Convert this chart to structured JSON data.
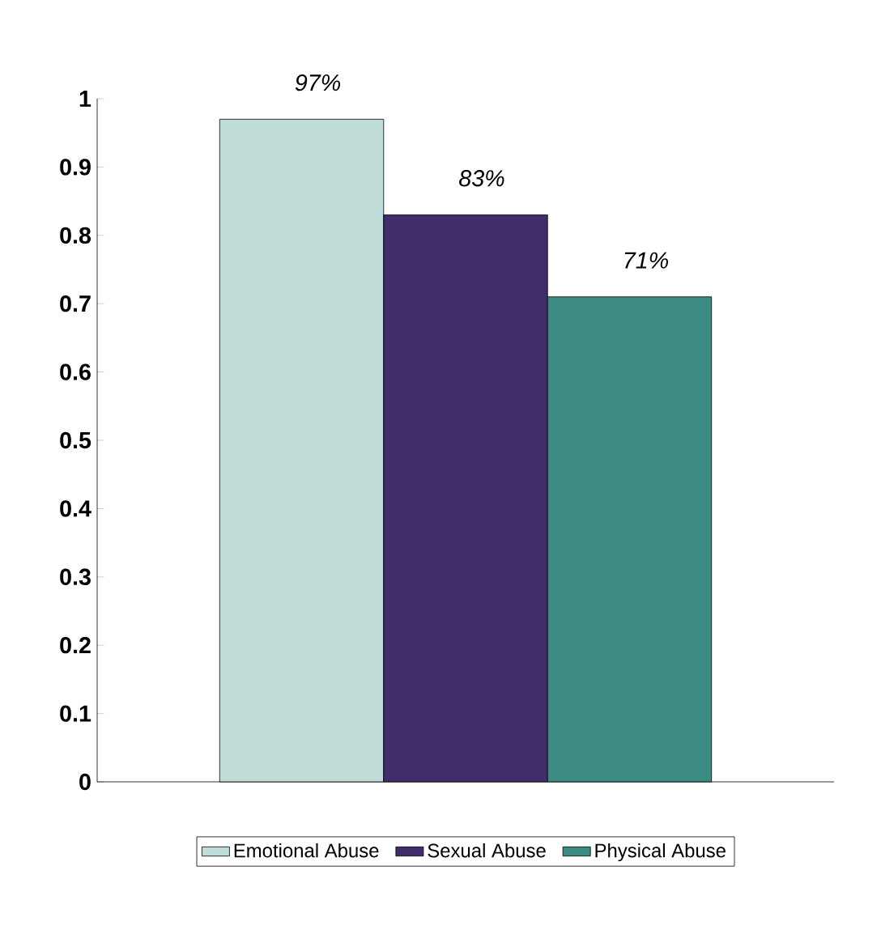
{
  "chart_data": {
    "type": "bar",
    "categories": [
      null
    ],
    "series": [
      {
        "name": "Emotional Abuse",
        "color": "#c0dcd8",
        "values": [
          0.97
        ],
        "value_labels": [
          "97%"
        ]
      },
      {
        "name": "Sexual Abuse",
        "color": "#412c6c",
        "values": [
          0.83
        ],
        "value_labels": [
          "83%"
        ]
      },
      {
        "name": "Physical Abuse",
        "color": "#3c8c84",
        "values": [
          0.71
        ],
        "value_labels": [
          "71%"
        ]
      }
    ],
    "ylim": [
      0,
      1
    ],
    "yticks": [
      0,
      0.1,
      0.2,
      0.3,
      0.4,
      0.5,
      0.6,
      0.7,
      0.8,
      0.9,
      1
    ],
    "legend": "bottom"
  }
}
